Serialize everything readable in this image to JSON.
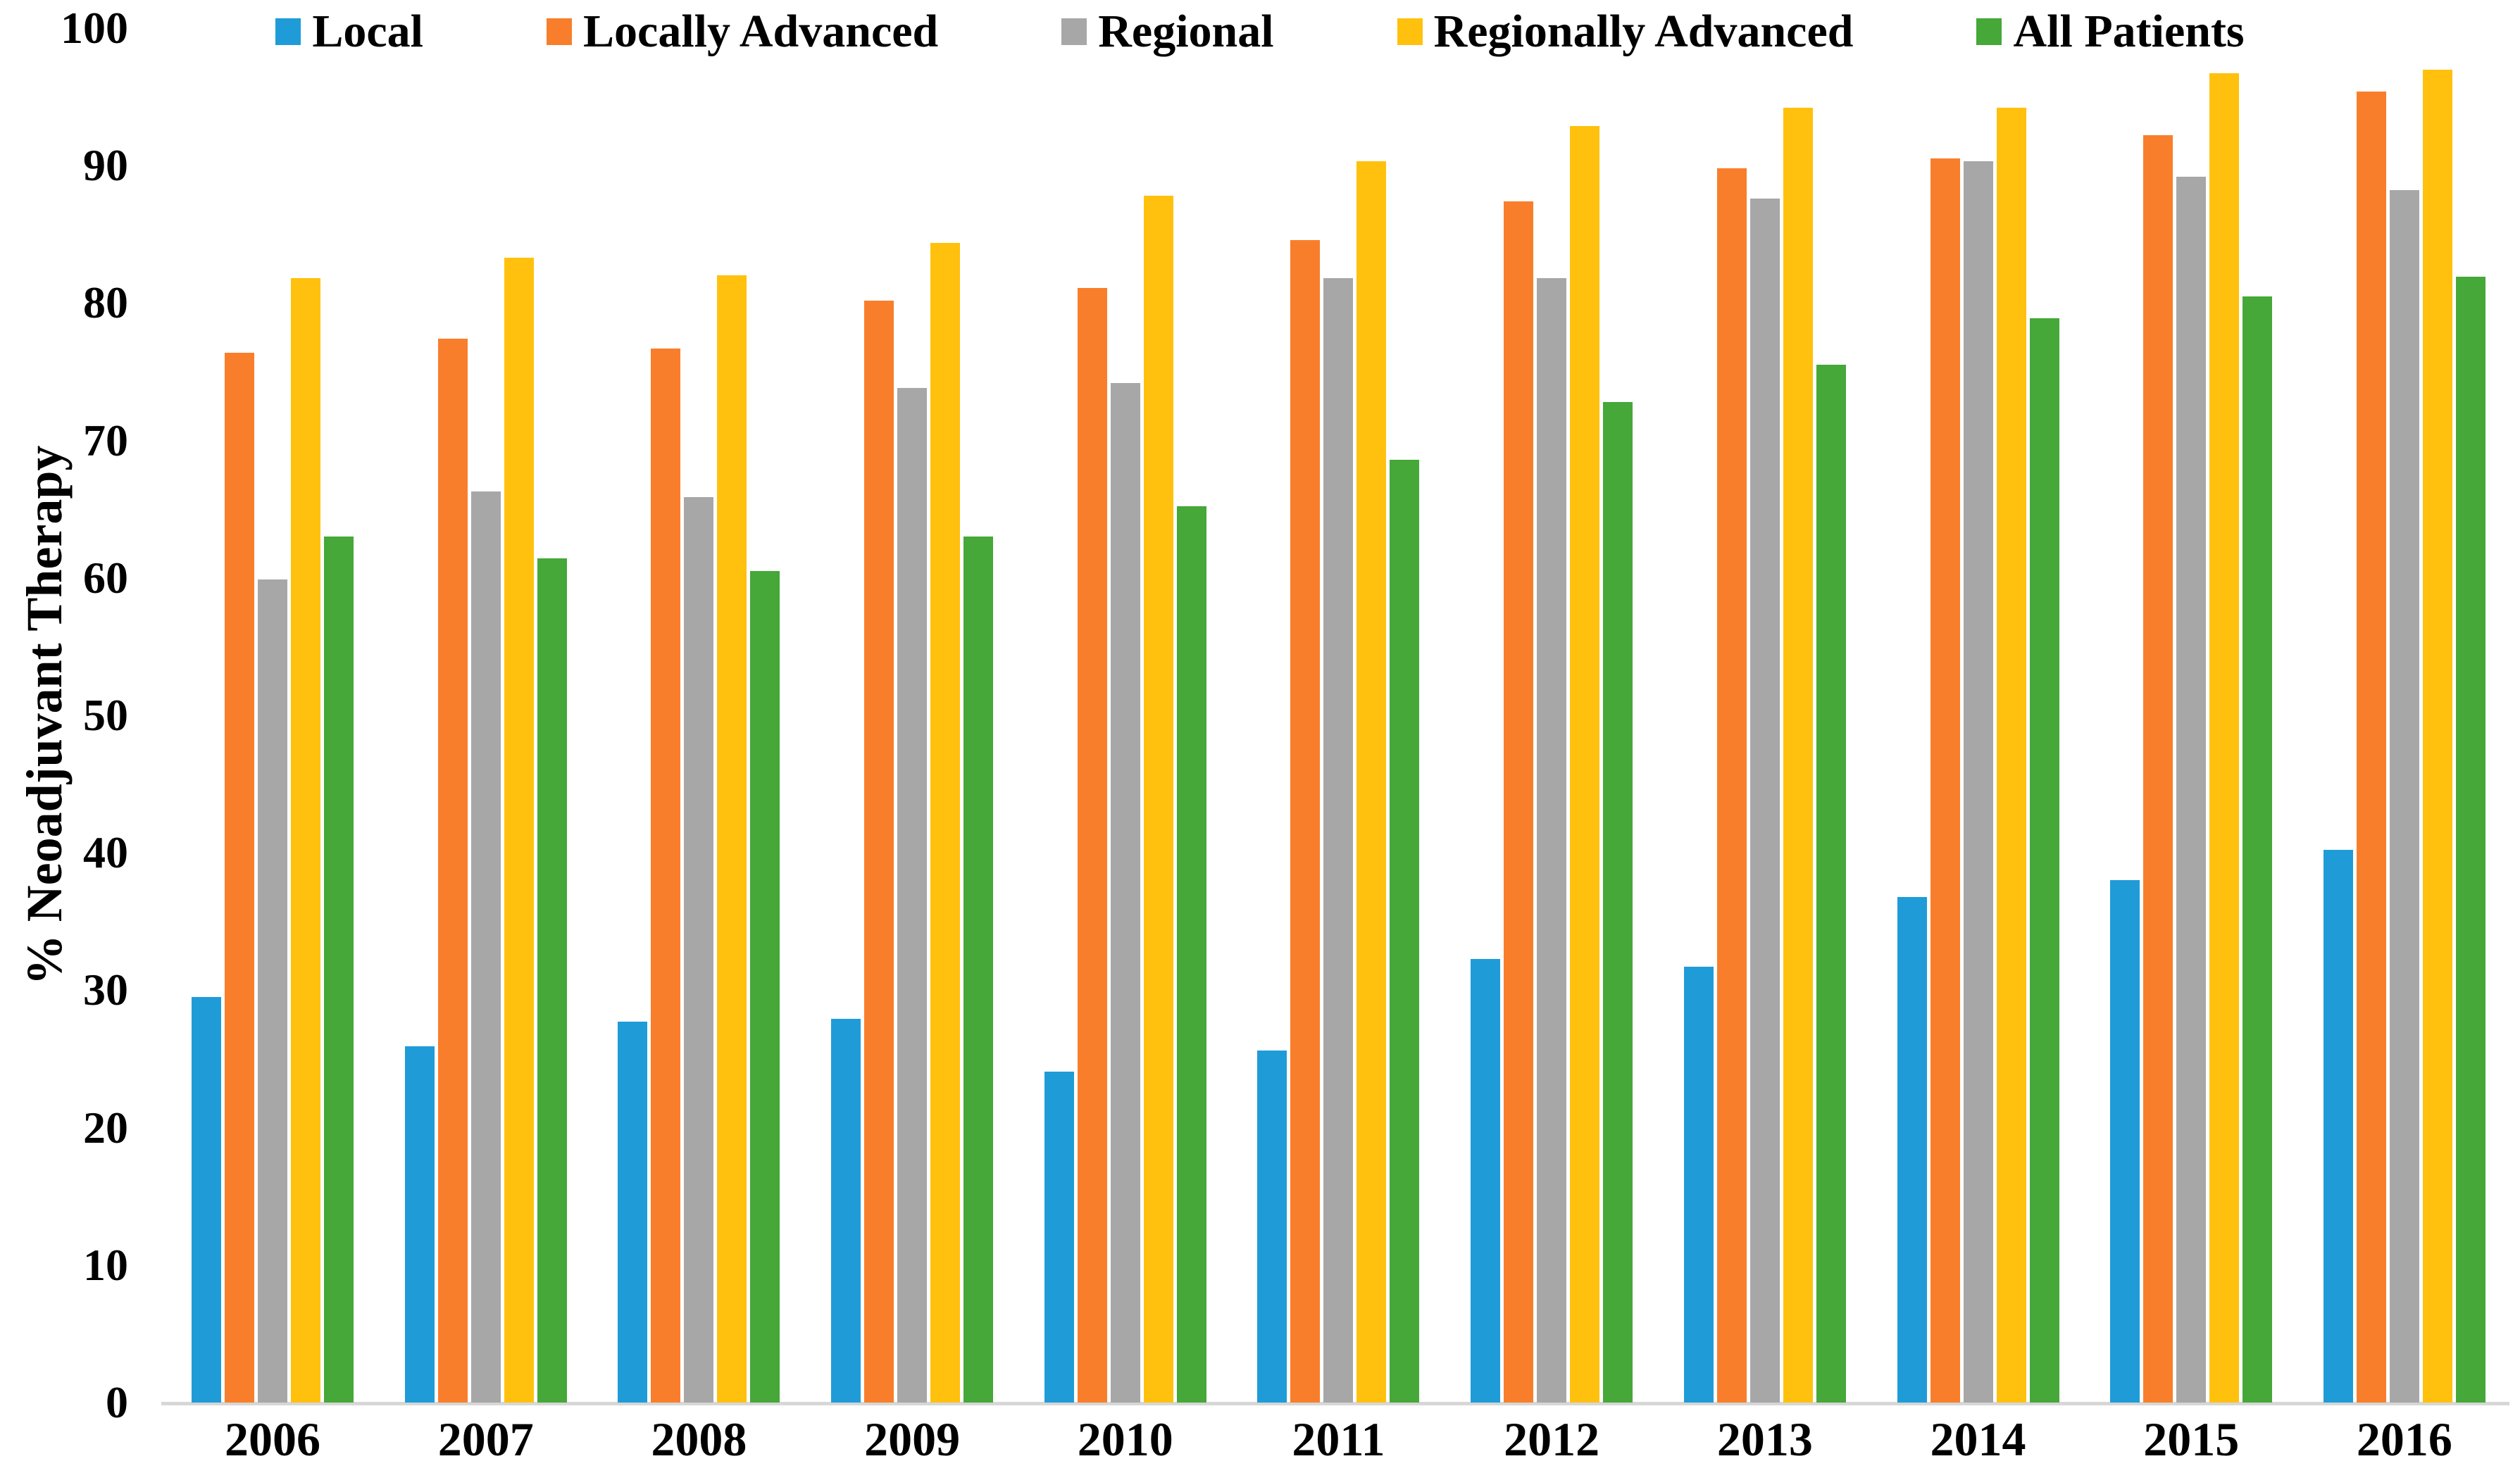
{
  "figure": {
    "background": "#ffffff",
    "text_color": "#000000",
    "axis_line_color": "#d7d7d7"
  },
  "chart_data": {
    "type": "bar",
    "title": "",
    "xlabel": "",
    "ylabel": "% Neoadjuvant Therapy",
    "ylim": [
      0,
      100
    ],
    "yticks": [
      0,
      10,
      20,
      30,
      40,
      50,
      60,
      70,
      80,
      90,
      100
    ],
    "grid": false,
    "legend_position": "top",
    "categories": [
      "2006",
      "2007",
      "2008",
      "2009",
      "2010",
      "2011",
      "2012",
      "2013",
      "2014",
      "2015",
      "2016"
    ],
    "series": [
      {
        "name": "Local",
        "color": "#1f9cd8",
        "values": [
          29.5,
          25.9,
          27.7,
          27.9,
          24.1,
          25.6,
          32.3,
          31.7,
          36.8,
          38.0,
          40.2
        ]
      },
      {
        "name": "Locally Advanced",
        "color": "#f97e2b",
        "values": [
          76.4,
          77.4,
          76.7,
          80.2,
          81.1,
          84.6,
          87.4,
          89.8,
          90.5,
          92.2,
          95.4
        ]
      },
      {
        "name": "Regional",
        "color": "#a7a7a7",
        "values": [
          59.9,
          66.3,
          65.9,
          73.8,
          74.2,
          81.8,
          81.8,
          87.6,
          90.3,
          89.2,
          88.2
        ]
      },
      {
        "name": "Regionally Advanced",
        "color": "#ffc10e",
        "values": [
          81.8,
          83.3,
          82.0,
          84.4,
          87.8,
          90.3,
          92.9,
          94.2,
          94.2,
          96.7,
          97.0
        ]
      },
      {
        "name": "All Patients",
        "color": "#45a838",
        "values": [
          63.0,
          61.4,
          60.5,
          63.0,
          65.2,
          68.6,
          72.8,
          75.5,
          78.9,
          80.5,
          81.9
        ]
      }
    ]
  }
}
